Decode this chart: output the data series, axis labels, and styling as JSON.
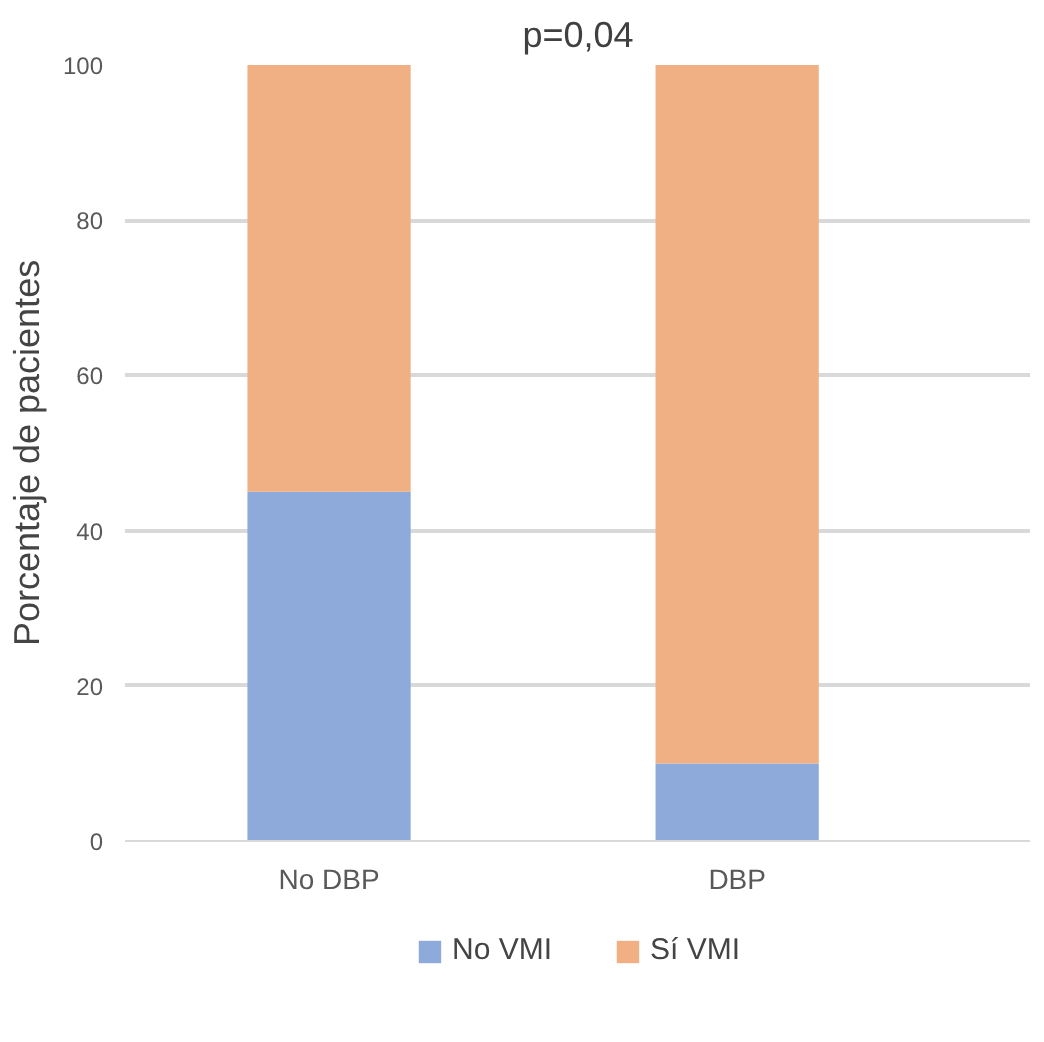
{
  "chart_data": {
    "type": "bar",
    "stacked": true,
    "ylabel": "Porcentaje de pacientes",
    "categories": [
      "No DBP",
      "DBP"
    ],
    "series": [
      {
        "name": "No VMI",
        "color": "#8eaadb",
        "values": [
          45,
          10
        ]
      },
      {
        "name": "Sí VMI",
        "color": "#f0b084",
        "values": [
          55,
          90
        ]
      }
    ],
    "ylim": [
      0,
      100
    ],
    "yticks": [
      0,
      20,
      40,
      60,
      80,
      100
    ],
    "grid": "y",
    "legend": "bottom",
    "annotations": [
      "p=0,04"
    ]
  }
}
